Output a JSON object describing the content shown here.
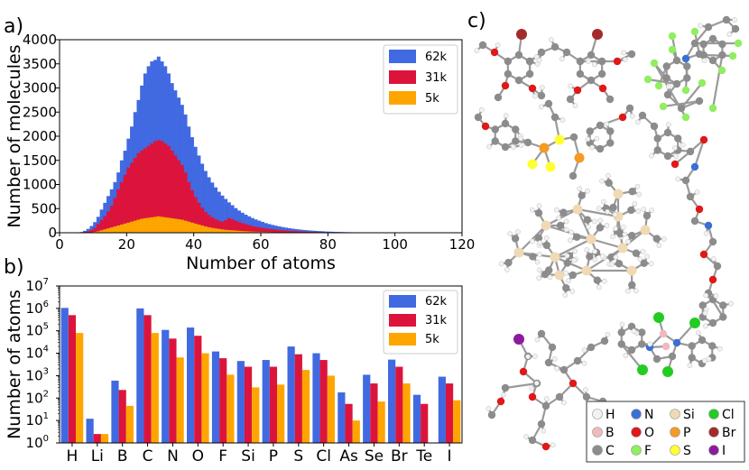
{
  "colors": {
    "62k": "#4169e1",
    "31k": "#dc143c",
    "5k": "#ffa500"
  },
  "chart_data": [
    {
      "panel_label": "a)",
      "type": "bar",
      "subtype": "overlaid-histogram",
      "title": "",
      "xlabel": "Number of atoms",
      "ylabel": "Number of molecules",
      "xlim": [
        0,
        120
      ],
      "ylim": [
        0,
        4000
      ],
      "xticks": [
        "0",
        "20",
        "40",
        "60",
        "80",
        "100",
        "120"
      ],
      "yticks": [
        "0",
        "500",
        "1000",
        "1500",
        "2000",
        "2500",
        "3000",
        "3500",
        "4000"
      ],
      "legend_position": "top-right",
      "bin_start": 6,
      "bin_width": 1,
      "series": [
        {
          "name": "62k",
          "values": [
            15,
            40,
            80,
            140,
            220,
            330,
            480,
            620,
            760,
            900,
            1050,
            1250,
            1500,
            1700,
            1950,
            2200,
            2500,
            2750,
            3050,
            3300,
            3450,
            3550,
            3580,
            3650,
            3550,
            3450,
            3300,
            3100,
            2950,
            2800,
            2650,
            2450,
            2200,
            1980,
            1780,
            1600,
            1430,
            1280,
            1150,
            1040,
            940,
            850,
            770,
            700,
            630,
            570,
            510,
            460,
            415,
            375,
            340,
            305,
            275,
            250,
            225,
            200,
            180,
            162,
            146,
            132,
            118,
            106,
            95,
            85,
            76,
            68,
            60,
            54,
            48,
            43,
            38,
            34,
            30,
            26,
            23,
            20,
            18,
            16,
            14,
            12,
            11,
            10,
            9,
            8,
            7,
            6,
            5,
            5,
            4,
            4,
            3,
            3,
            2,
            2,
            2,
            2,
            1,
            1,
            1,
            1,
            1,
            1,
            1,
            1,
            1,
            1,
            1,
            1,
            1,
            1,
            1
          ]
        },
        {
          "name": "31k",
          "values": [
            5,
            15,
            30,
            55,
            100,
            180,
            260,
            340,
            440,
            560,
            720,
            900,
            1050,
            1200,
            1350,
            1450,
            1550,
            1650,
            1700,
            1750,
            1800,
            1850,
            1900,
            1920,
            1900,
            1850,
            1800,
            1700,
            1600,
            1500,
            1400,
            1250,
            1050,
            880,
            740,
            620,
            520,
            430,
            370,
            320,
            280,
            250,
            230,
            260,
            300,
            280,
            250,
            220,
            200,
            180,
            160,
            140,
            125,
            110,
            100,
            90,
            80,
            72,
            65,
            58,
            52,
            47,
            42,
            37,
            33,
            30,
            26,
            23,
            20,
            18,
            16,
            14,
            12,
            10,
            9,
            8,
            7,
            6,
            5,
            4,
            4,
            3,
            3,
            2,
            2,
            2,
            1,
            1,
            1,
            1,
            1,
            1,
            0,
            0,
            0,
            0,
            0,
            0,
            0,
            0,
            0,
            0,
            0,
            0,
            0,
            0,
            0,
            0,
            0,
            0,
            0
          ]
        },
        {
          "name": "5k",
          "values": [
            1,
            3,
            6,
            10,
            18,
            30,
            50,
            70,
            90,
            110,
            130,
            150,
            170,
            190,
            210,
            230,
            250,
            270,
            290,
            300,
            310,
            320,
            330,
            340,
            330,
            320,
            310,
            300,
            290,
            280,
            270,
            250,
            230,
            210,
            190,
            170,
            150,
            130,
            115,
            100,
            90,
            80,
            70,
            60,
            55,
            50,
            45,
            40,
            36,
            32,
            28,
            25,
            22,
            20,
            18,
            16,
            14,
            12,
            11,
            10,
            9,
            8,
            7,
            6,
            5,
            5,
            4,
            4,
            3,
            3,
            2,
            2,
            2,
            1,
            1,
            1,
            1,
            1,
            1,
            0,
            0,
            0,
            0,
            0,
            0,
            0,
            0,
            0,
            0,
            0,
            0,
            0,
            0,
            0,
            0,
            0,
            0,
            0,
            0,
            0,
            0,
            0,
            0,
            0,
            0,
            0,
            0,
            0,
            0,
            0,
            0,
            0
          ]
        }
      ]
    },
    {
      "panel_label": "b)",
      "type": "bar",
      "subtype": "grouped-bar-log",
      "title": "",
      "xlabel": "",
      "ylabel": "Number of atoms",
      "yscale": "log",
      "ylim": [
        1,
        10000000
      ],
      "ytick_base": "10",
      "ytick_exponents": [
        "0",
        "1",
        "2",
        "3",
        "4",
        "5",
        "6",
        "7"
      ],
      "legend_position": "top-right",
      "categories": [
        "H",
        "Li",
        "B",
        "C",
        "N",
        "O",
        "F",
        "Si",
        "P",
        "S",
        "Cl",
        "As",
        "Se",
        "Br",
        "Te",
        "I"
      ],
      "series": [
        {
          "name": "62k",
          "values": [
            1050000,
            12,
            600,
            1000000,
            110000,
            140000,
            12000,
            4500,
            5000,
            20000,
            10000,
            180,
            1100,
            5200,
            140,
            900
          ]
        },
        {
          "name": "31k",
          "values": [
            500000,
            2.5,
            230,
            500000,
            45000,
            60000,
            6000,
            2500,
            2500,
            9000,
            5000,
            55,
            450,
            2500,
            55,
            450
          ]
        },
        {
          "name": "5k",
          "values": [
            80000,
            2.5,
            45,
            80000,
            6500,
            10000,
            1100,
            300,
            400,
            1800,
            1000,
            10,
            70,
            450,
            0,
            80
          ]
        }
      ]
    }
  ],
  "panel_c": {
    "label": "c)",
    "legend": [
      {
        "symbol": "H",
        "color": "#f2f2f2"
      },
      {
        "symbol": "N",
        "color": "#3b6fd6"
      },
      {
        "symbol": "Si",
        "color": "#f0d9b5"
      },
      {
        "symbol": "Cl",
        "color": "#22cc22"
      },
      {
        "symbol": "B",
        "color": "#f2b8be"
      },
      {
        "symbol": "O",
        "color": "#e01818"
      },
      {
        "symbol": "P",
        "color": "#f59a23"
      },
      {
        "symbol": "Br",
        "color": "#a52a2a"
      },
      {
        "symbol": "C",
        "color": "#8c8c8c"
      },
      {
        "symbol": "F",
        "color": "#90ee60"
      },
      {
        "symbol": "S",
        "color": "#ffff33"
      },
      {
        "symbol": "I",
        "color": "#8b1a9e"
      }
    ]
  }
}
